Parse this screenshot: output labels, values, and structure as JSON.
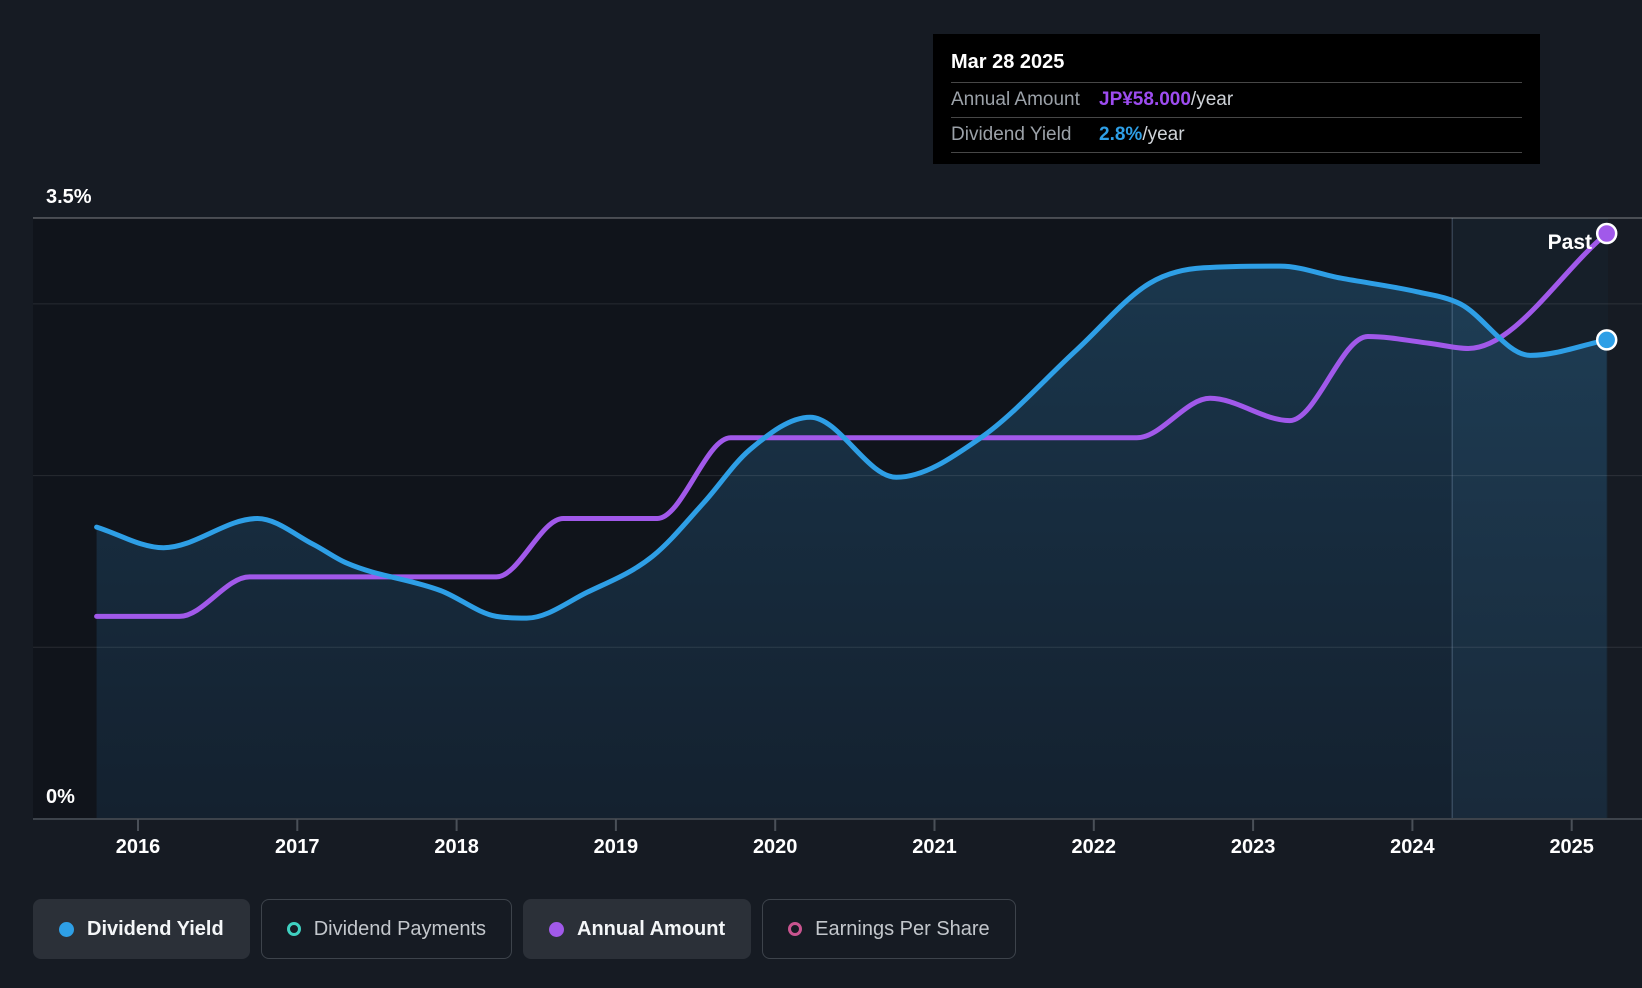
{
  "tooltip": {
    "date": "Mar 28 2025",
    "rows": [
      {
        "label": "Annual Amount",
        "value": "JP¥58.000",
        "suffix": "/year",
        "color": "#9d4cf0"
      },
      {
        "label": "Dividend Yield",
        "value": "2.8%",
        "suffix": "/year",
        "color": "#2e9fe6"
      }
    ]
  },
  "chart_data": {
    "type": "area",
    "x_axis": {
      "ticks": [
        2016,
        2017,
        2018,
        2019,
        2020,
        2021,
        2022,
        2023,
        2024,
        2025
      ]
    },
    "y_axis": {
      "min": 0,
      "max": 3.5,
      "unit": "%",
      "label_top": "3.5%",
      "label_bottom": "0%",
      "gridlines": [
        3.5,
        3,
        2,
        1,
        0
      ]
    },
    "region_label": "Past",
    "past_divider_x": 2024.25,
    "series": [
      {
        "name": "Dividend Yield",
        "color": "#2e9fe6",
        "style": "line+area",
        "unit": "%",
        "final_value": "2.8%/year",
        "points": [
          [
            2015.74,
            1.7
          ],
          [
            2016.16,
            1.58
          ],
          [
            2016.75,
            1.75
          ],
          [
            2017.1,
            1.6
          ],
          [
            2017.31,
            1.49
          ],
          [
            2017.9,
            1.33
          ],
          [
            2018.25,
            1.18
          ],
          [
            2018.44,
            1.17
          ],
          [
            2018.82,
            1.32
          ],
          [
            2019.23,
            1.53
          ],
          [
            2019.55,
            1.84
          ],
          [
            2019.84,
            2.15
          ],
          [
            2020.22,
            2.34
          ],
          [
            2020.76,
            1.99
          ],
          [
            2021.29,
            2.22
          ],
          [
            2021.89,
            2.73
          ],
          [
            2022.35,
            3.12
          ],
          [
            2022.69,
            3.21
          ],
          [
            2023.17,
            3.22
          ],
          [
            2023.55,
            3.15
          ],
          [
            2024.03,
            3.07
          ],
          [
            2024.3,
            3.0
          ],
          [
            2024.74,
            2.7
          ],
          [
            2025.22,
            2.79
          ]
        ]
      },
      {
        "name": "Annual Amount",
        "color": "#a159ea",
        "style": "line",
        "unit": "JP¥/year",
        "final_value": "JP¥58.000/year",
        "points": [
          [
            2015.74,
            1.18
          ],
          [
            2016.26,
            1.18
          ],
          [
            2016.7,
            1.41
          ],
          [
            2018.25,
            1.41
          ],
          [
            2018.67,
            1.75
          ],
          [
            2019.26,
            1.75
          ],
          [
            2019.72,
            2.22
          ],
          [
            2022.27,
            2.22
          ],
          [
            2022.73,
            2.45
          ],
          [
            2023.23,
            2.32
          ],
          [
            2023.72,
            2.81
          ],
          [
            2024.11,
            2.77
          ],
          [
            2024.35,
            2.74
          ],
          [
            2025.22,
            3.41
          ]
        ],
        "amounts_jpy": [
          20,
          20,
          24,
          24,
          30,
          30,
          38,
          38,
          42,
          39,
          48,
          47,
          46,
          58
        ]
      }
    ]
  },
  "legend": {
    "items": [
      {
        "label": "Dividend Yield",
        "marker": "dot",
        "color": "#2e9fe6",
        "active": true
      },
      {
        "label": "Dividend Payments",
        "marker": "ring",
        "color": "#3fd0c0",
        "active": false
      },
      {
        "label": "Annual Amount",
        "marker": "dot",
        "color": "#a159ea",
        "active": true
      },
      {
        "label": "Earnings Per Share",
        "marker": "ring",
        "color": "#c9548f",
        "active": false
      }
    ]
  },
  "colors": {
    "background": "#161b23",
    "plot_background": "#10141b",
    "grid_major": "rgba(255,255,255,0.30)",
    "grid_minor": "rgba(255,255,255,0.10)",
    "axis_line": "#3d434b",
    "tick": "#4a5058",
    "area_top": "rgba(45,120,170,0.35)",
    "area_bottom": "rgba(40,100,150,0.16)",
    "past_region_fill": "rgba(120,180,230,0.07)",
    "past_divider": "rgba(150,180,210,0.25)",
    "text_primary": "#ffffff",
    "marker_stroke": "#ffffff"
  }
}
